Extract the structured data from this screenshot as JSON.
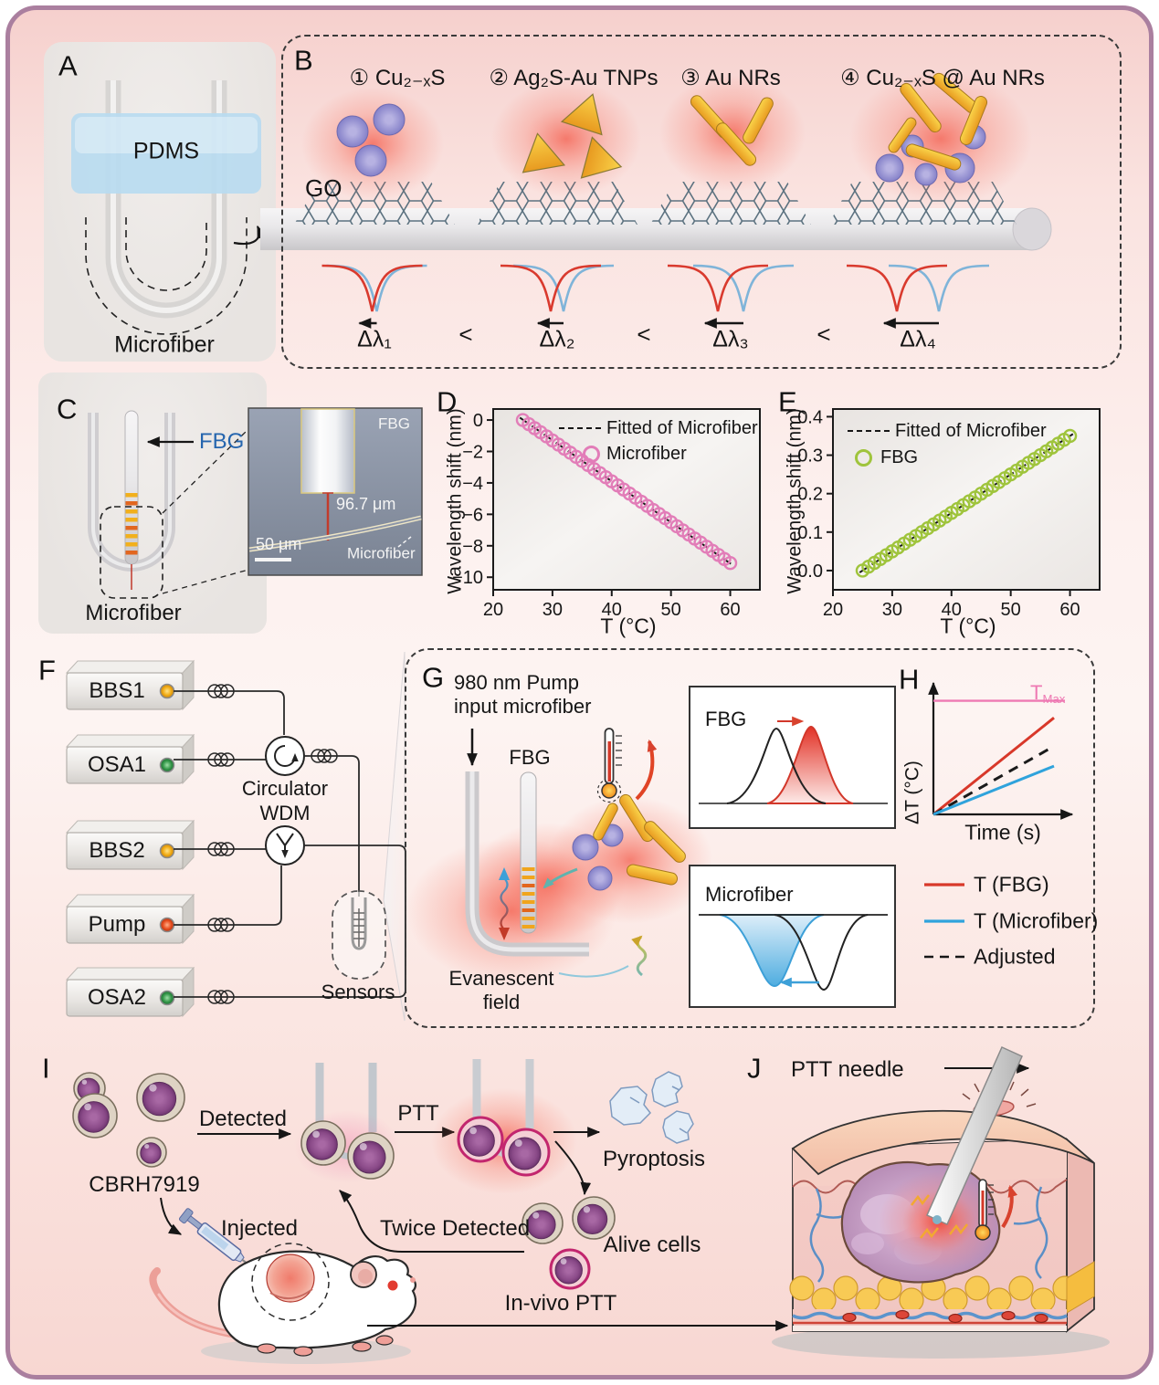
{
  "figure": {
    "border_color": "#aa7f9f"
  },
  "colors": {
    "glow_red": "#f2402a",
    "gold_np": "#f0b52e",
    "purple_np": "#8e8ace",
    "pink_marker": "#e27db8",
    "green_marker": "#9fc43c",
    "fbg_blue": "#2565ae",
    "tmax_pink": "#ee79b3",
    "red_line": "#d8382a",
    "blue_line": "#2fa3dc"
  },
  "panels": {
    "a": {
      "letter": "A",
      "pdms": "PDMS",
      "microfiber": "Microfiber"
    },
    "b": {
      "letter": "B",
      "go": "GO",
      "materials": [
        "① Cu₂₋ₓS",
        "② Ag₂S-Au TNPs",
        "③ Au NRs",
        "④ Cu₂₋ₓS @ Au NRs"
      ],
      "delta_labels": [
        "Δλ₁",
        "Δλ₂",
        "Δλ₃",
        "Δλ₄"
      ],
      "lt": "<"
    },
    "c": {
      "letter": "C",
      "fbg": "FBG",
      "microfiber": "Microfiber",
      "inset": {
        "fbg": "FBG",
        "distance": "96.7 μm",
        "scale": "50 μm",
        "microfiber": "Microfiber"
      }
    },
    "d": {
      "letter": "D"
    },
    "e": {
      "letter": "E"
    },
    "f": {
      "letter": "F",
      "devices": [
        "BBS1",
        "OSA1",
        "BBS2",
        "Pump",
        "OSA2"
      ],
      "circulator": "Circulator",
      "wdm": "WDM",
      "sensors": "Sensors"
    },
    "g": {
      "letter": "G",
      "pump_line1": "980 nm Pump",
      "pump_line2": "input microfiber",
      "fbg": "FBG",
      "evanescent_line1": "Evanescent",
      "evanescent_line2": "field",
      "inset_fbg": "FBG",
      "inset_microfiber": "Microfiber"
    },
    "h": {
      "letter": "H"
    },
    "i": {
      "letter": "I",
      "cells": "CBRH7919",
      "detected": "Detected",
      "ptt": "PTT",
      "pyroptosis": "Pyroptosis",
      "alive": "Alive cells",
      "twice": "Twice Detected",
      "injected": "Injected",
      "invivo": "In-vivo PTT"
    },
    "j": {
      "letter": "J",
      "needle": "PTT needle"
    }
  },
  "chart_data": [
    {
      "type": "scatter",
      "id": "chart-d",
      "title": "",
      "xlabel": "T (°C)",
      "ylabel": "Wavelength shift (nm)",
      "xlim": [
        20,
        65
      ],
      "ylim": [
        -10.8,
        0.7
      ],
      "xticks": [
        20,
        30,
        40,
        50,
        60
      ],
      "yticks": [
        0,
        -2,
        -4,
        -6,
        -8,
        -10
      ],
      "tick_decimals": 0,
      "grid": false,
      "legend_position": "top-right",
      "legend": [
        {
          "label": "Fitted of Microfiber",
          "style": "dashed-line",
          "color": "#161616"
        },
        {
          "label": "Microfiber",
          "style": "circle",
          "color": "#e27db8"
        }
      ],
      "marker_color": "#e27db8",
      "fit": {
        "x": [
          24.5,
          60.5
        ],
        "y": [
          0.15,
          -9.25
        ]
      },
      "x": [
        25,
        26,
        27,
        28,
        29,
        30,
        31,
        32,
        33,
        34,
        35,
        36,
        37,
        38,
        39,
        40,
        41,
        42,
        43,
        44,
        45,
        46,
        47,
        48,
        49,
        50,
        51,
        52,
        53,
        54,
        55,
        56,
        57,
        58,
        59,
        60
      ],
      "y": [
        0.0,
        -0.26,
        -0.52,
        -0.78,
        -1.04,
        -1.3,
        -1.56,
        -1.82,
        -2.08,
        -2.34,
        -2.6,
        -2.86,
        -3.12,
        -3.38,
        -3.64,
        -3.9,
        -4.16,
        -4.42,
        -4.68,
        -4.94,
        -5.2,
        -5.46,
        -5.72,
        -5.98,
        -6.24,
        -6.5,
        -6.76,
        -7.02,
        -7.28,
        -7.54,
        -7.8,
        -8.06,
        -8.32,
        -8.58,
        -8.84,
        -9.1
      ]
    },
    {
      "type": "scatter",
      "id": "chart-e",
      "title": "",
      "xlabel": "T (°C)",
      "ylabel": "Wavelength shift (nm)",
      "xlim": [
        20,
        65
      ],
      "ylim": [
        -0.05,
        0.42
      ],
      "xticks": [
        20,
        30,
        40,
        50,
        60
      ],
      "yticks": [
        0.0,
        0.1,
        0.2,
        0.3,
        0.4
      ],
      "tick_decimals": 1,
      "grid": false,
      "legend_position": "top-left",
      "legend": [
        {
          "label": "Fitted of Microfiber",
          "style": "dashed-line",
          "color": "#161616"
        },
        {
          "label": "FBG",
          "style": "circle",
          "color": "#9fc43c"
        }
      ],
      "marker_color": "#9fc43c",
      "fit": {
        "x": [
          24.5,
          60.5
        ],
        "y": [
          -0.005,
          0.355
        ]
      },
      "x": [
        25,
        26,
        27,
        28,
        29,
        30,
        31,
        32,
        33,
        34,
        35,
        36,
        37,
        38,
        39,
        40,
        41,
        42,
        43,
        44,
        45,
        46,
        47,
        48,
        49,
        50,
        51,
        52,
        53,
        54,
        55,
        56,
        57,
        58,
        59,
        60
      ],
      "y": [
        0.0,
        0.01,
        0.02,
        0.03,
        0.04,
        0.05,
        0.06,
        0.07,
        0.08,
        0.09,
        0.1,
        0.11,
        0.12,
        0.13,
        0.14,
        0.15,
        0.16,
        0.17,
        0.18,
        0.19,
        0.2,
        0.21,
        0.22,
        0.23,
        0.24,
        0.25,
        0.26,
        0.27,
        0.28,
        0.29,
        0.3,
        0.31,
        0.32,
        0.33,
        0.34,
        0.35
      ]
    },
    {
      "type": "line-schematic",
      "id": "chart-h",
      "xlabel": "Time (s)",
      "ylabel": "ΔT (°C)",
      "tmax_label": "T",
      "tmax_sub": "Max",
      "tmax_color": "#ee79b3",
      "tmax_level": 0.8,
      "series": [
        {
          "name": "T (FBG)",
          "color": "#d8382a",
          "style": "solid",
          "end": 0.68
        },
        {
          "name": "Adjusted",
          "color": "#1a1a1a",
          "style": "dashed",
          "end": 0.48
        },
        {
          "name": "T (Microfiber)",
          "color": "#2fa3dc",
          "style": "solid",
          "end": 0.34
        }
      ]
    }
  ]
}
